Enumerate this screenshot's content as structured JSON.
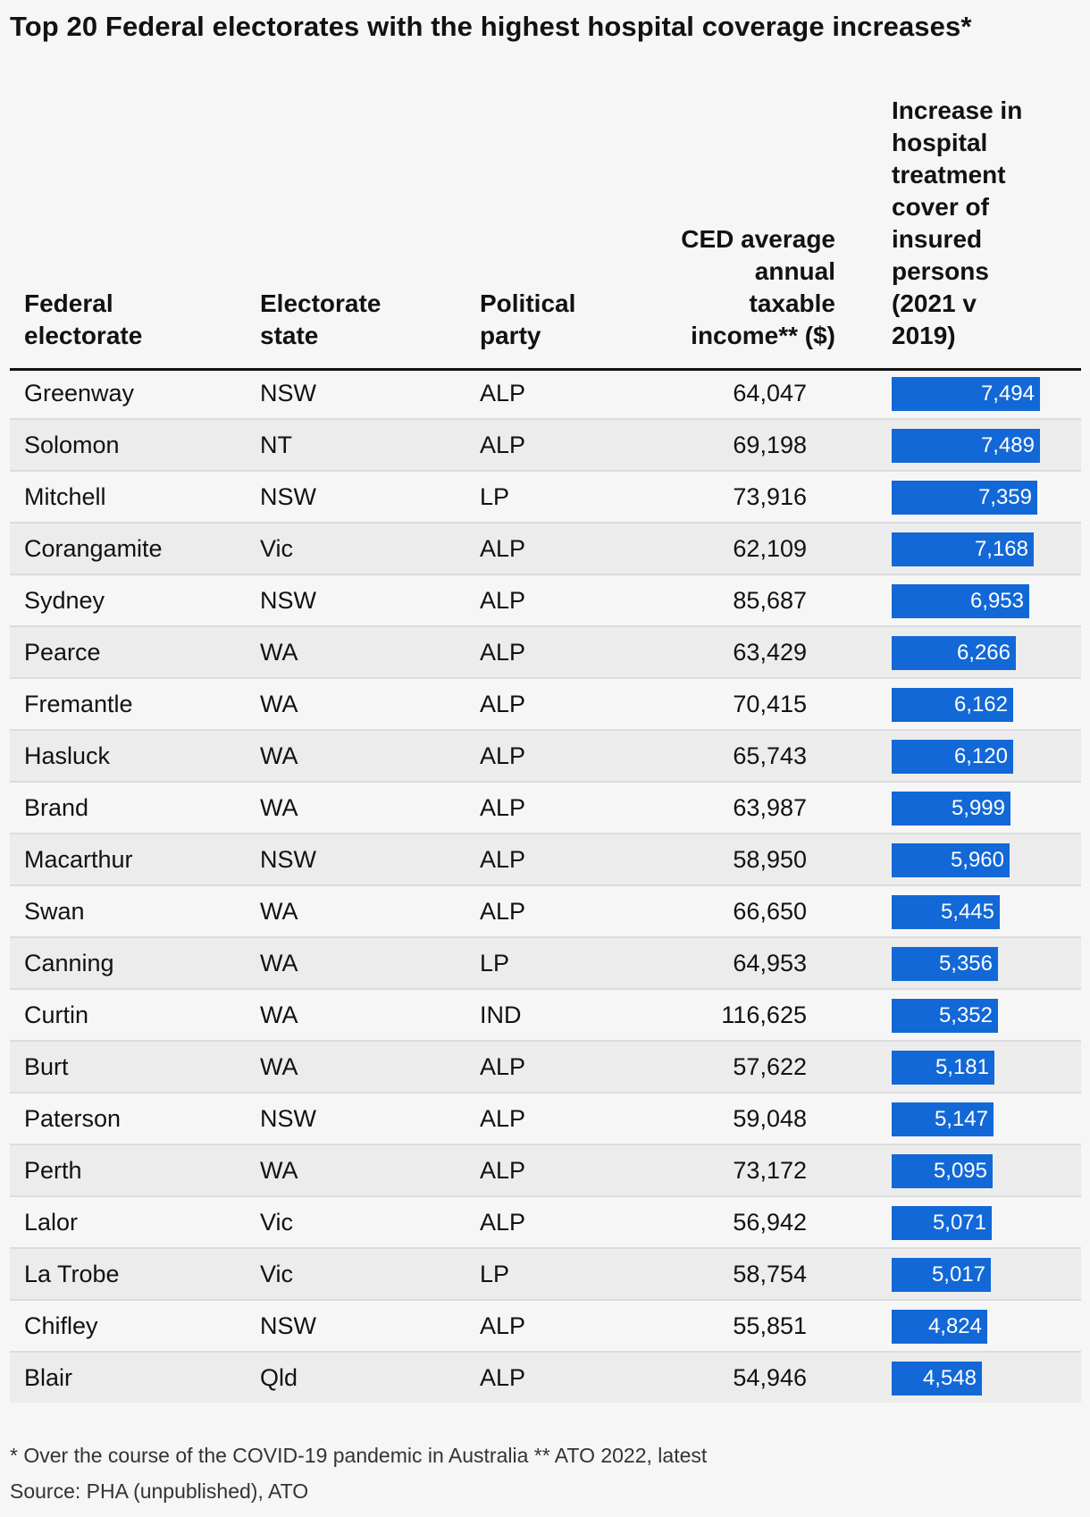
{
  "title": "Top 20 Federal electorates with the highest hospital coverage increases*",
  "columns": {
    "electorate": [
      "Federal",
      "electorate"
    ],
    "state": [
      "Electorate",
      "state"
    ],
    "party": [
      "Political",
      "party"
    ],
    "income": [
      "CED average",
      "annual",
      "taxable",
      "income** ($)"
    ],
    "increase": [
      "Increase in",
      "hospital",
      "treatment",
      "cover of",
      "insured",
      "persons",
      "(2021 v",
      "2019)"
    ]
  },
  "chart_data": {
    "type": "table",
    "title": "Top 20 Federal electorates with the highest hospital coverage increases*",
    "bar_color": "#1268d6",
    "bar_max": 7494,
    "rows": [
      {
        "electorate": "Greenway",
        "state": "NSW",
        "party": "ALP",
        "income": "64,047",
        "increase": 7494,
        "increase_label": "7,494"
      },
      {
        "electorate": "Solomon",
        "state": "NT",
        "party": "ALP",
        "income": "69,198",
        "increase": 7489,
        "increase_label": "7,489"
      },
      {
        "electorate": "Mitchell",
        "state": "NSW",
        "party": "LP",
        "income": "73,916",
        "increase": 7359,
        "increase_label": "7,359"
      },
      {
        "electorate": "Corangamite",
        "state": "Vic",
        "party": "ALP",
        "income": "62,109",
        "increase": 7168,
        "increase_label": "7,168"
      },
      {
        "electorate": "Sydney",
        "state": "NSW",
        "party": "ALP",
        "income": "85,687",
        "increase": 6953,
        "increase_label": "6,953"
      },
      {
        "electorate": "Pearce",
        "state": "WA",
        "party": "ALP",
        "income": "63,429",
        "increase": 6266,
        "increase_label": "6,266"
      },
      {
        "electorate": "Fremantle",
        "state": "WA",
        "party": "ALP",
        "income": "70,415",
        "increase": 6162,
        "increase_label": "6,162"
      },
      {
        "electorate": "Hasluck",
        "state": "WA",
        "party": "ALP",
        "income": "65,743",
        "increase": 6120,
        "increase_label": "6,120"
      },
      {
        "electorate": "Brand",
        "state": "WA",
        "party": "ALP",
        "income": "63,987",
        "increase": 5999,
        "increase_label": "5,999"
      },
      {
        "electorate": "Macarthur",
        "state": "NSW",
        "party": "ALP",
        "income": "58,950",
        "increase": 5960,
        "increase_label": "5,960"
      },
      {
        "electorate": "Swan",
        "state": "WA",
        "party": "ALP",
        "income": "66,650",
        "increase": 5445,
        "increase_label": "5,445"
      },
      {
        "electorate": "Canning",
        "state": "WA",
        "party": "LP",
        "income": "64,953",
        "increase": 5356,
        "increase_label": "5,356"
      },
      {
        "electorate": "Curtin",
        "state": "WA",
        "party": "IND",
        "income": "116,625",
        "increase": 5352,
        "increase_label": "5,352"
      },
      {
        "electorate": "Burt",
        "state": "WA",
        "party": "ALP",
        "income": "57,622",
        "increase": 5181,
        "increase_label": "5,181"
      },
      {
        "electorate": "Paterson",
        "state": "NSW",
        "party": "ALP",
        "income": "59,048",
        "increase": 5147,
        "increase_label": "5,147"
      },
      {
        "electorate": "Perth",
        "state": "WA",
        "party": "ALP",
        "income": "73,172",
        "increase": 5095,
        "increase_label": "5,095"
      },
      {
        "electorate": "Lalor",
        "state": "Vic",
        "party": "ALP",
        "income": "56,942",
        "increase": 5071,
        "increase_label": "5,071"
      },
      {
        "electorate": "La Trobe",
        "state": "Vic",
        "party": "LP",
        "income": "58,754",
        "increase": 5017,
        "increase_label": "5,017"
      },
      {
        "electorate": "Chifley",
        "state": "NSW",
        "party": "ALP",
        "income": "55,851",
        "increase": 4824,
        "increase_label": "4,824"
      },
      {
        "electorate": "Blair",
        "state": "Qld",
        "party": "ALP",
        "income": "54,946",
        "increase": 4548,
        "increase_label": "4,548"
      }
    ]
  },
  "footnote": "* Over the course of the COVID-19 pandemic in Australia ** ATO 2022, latest",
  "source": "Source: PHA (unpublished), ATO"
}
